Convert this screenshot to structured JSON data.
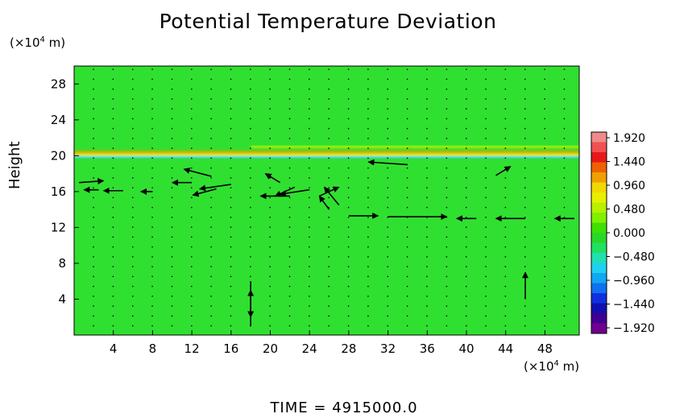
{
  "chart_data": {
    "type": "heatmap",
    "title": "Potential Temperature Deviation",
    "ylabel": "Height",
    "x_unit": {
      "pre": "(×10",
      "exp": "4",
      "post": " m)"
    },
    "y_unit": {
      "pre": "(×10",
      "exp": "4",
      "post": " m)"
    },
    "xlim": [
      0,
      51.5
    ],
    "ylim": [
      0,
      30
    ],
    "x_ticks": [
      4,
      8,
      12,
      16,
      20,
      24,
      28,
      32,
      36,
      40,
      44,
      48
    ],
    "y_ticks": [
      4,
      8,
      12,
      16,
      20,
      24,
      28
    ],
    "colorbar": {
      "ticks": [
        "1.920",
        "1.440",
        "0.960",
        "0.480",
        "0.000",
        "−0.480",
        "−0.960",
        "−1.440",
        "−1.920"
      ],
      "colors": [
        "#f08a8a",
        "#f05050",
        "#e81818",
        "#f06000",
        "#f0a000",
        "#f0d800",
        "#e8f000",
        "#b8f000",
        "#80f000",
        "#40e000",
        "#28d828",
        "#20e060",
        "#20e0b0",
        "#20d0f0",
        "#10a8f0",
        "#1070f0",
        "#1030e0",
        "#1010b0",
        "#400090",
        "#700090"
      ],
      "range": [
        -1.92,
        1.92
      ]
    },
    "background_color": "#30e030",
    "field_features": [
      {
        "kind": "band",
        "y": 20.4,
        "x_from": 0,
        "x_to": 51.5,
        "color": "#f0a000"
      },
      {
        "kind": "band",
        "y": 20.1,
        "x_from": 0,
        "x_to": 51.5,
        "color": "#e8f000"
      },
      {
        "kind": "band",
        "y": 19.8,
        "x_from": 0,
        "x_to": 51.5,
        "color": "#20d0f0"
      },
      {
        "kind": "band",
        "y": 21.0,
        "x_from": 18,
        "x_to": 51.5,
        "color": "#b8f000"
      }
    ],
    "wind_vectors": [
      {
        "x": 0.5,
        "y": 17.0,
        "u": 2.5,
        "v": 0.2
      },
      {
        "x": 2.5,
        "y": 16.2,
        "u": -1.5,
        "v": 0
      },
      {
        "x": 5.0,
        "y": 16.1,
        "u": -2.0,
        "v": 0
      },
      {
        "x": 8.0,
        "y": 16.0,
        "u": -1.2,
        "v": 0
      },
      {
        "x": 12.0,
        "y": 17.0,
        "u": -2.0,
        "v": 0
      },
      {
        "x": 14.0,
        "y": 17.7,
        "u": -2.8,
        "v": 0.8
      },
      {
        "x": 16.0,
        "y": 16.8,
        "u": -3.2,
        "v": -0.5
      },
      {
        "x": 14.5,
        "y": 16.3,
        "u": -2.4,
        "v": -0.7
      },
      {
        "x": 21.0,
        "y": 17.0,
        "u": -1.5,
        "v": 1.0
      },
      {
        "x": 22.5,
        "y": 16.5,
        "u": -2.0,
        "v": -1.0
      },
      {
        "x": 24.0,
        "y": 16.2,
        "u": -3.0,
        "v": -0.5
      },
      {
        "x": 22.0,
        "y": 15.5,
        "u": -3.0,
        "v": 0
      },
      {
        "x": 25.0,
        "y": 15.5,
        "u": 2.0,
        "v": 1.0
      },
      {
        "x": 27.0,
        "y": 14.5,
        "u": -1.5,
        "v": 2.0
      },
      {
        "x": 26.0,
        "y": 14.0,
        "u": -1.0,
        "v": 1.5
      },
      {
        "x": 28.0,
        "y": 13.3,
        "u": 3.0,
        "v": 0
      },
      {
        "x": 32.0,
        "y": 13.2,
        "u": 6.0,
        "v": 0
      },
      {
        "x": 41.0,
        "y": 13.0,
        "u": -2.0,
        "v": 0
      },
      {
        "x": 46.0,
        "y": 13.0,
        "u": -3.0,
        "v": 0
      },
      {
        "x": 51.0,
        "y": 13.0,
        "u": -2.0,
        "v": 0
      },
      {
        "x": 34.0,
        "y": 19.0,
        "u": -4.0,
        "v": 0.3
      },
      {
        "x": 43.0,
        "y": 17.8,
        "u": 1.5,
        "v": 1.0
      },
      {
        "x": 18.0,
        "y": 1.0,
        "u": 0,
        "v": 4.0
      },
      {
        "x": 18.0,
        "y": 6.0,
        "u": 0,
        "v": -4.0
      },
      {
        "x": 46.0,
        "y": 4.0,
        "u": 0,
        "v": 3.0
      }
    ]
  },
  "footer": {
    "time_label": "TIME",
    "time_sep": "=",
    "time_value": "4915000.0"
  }
}
